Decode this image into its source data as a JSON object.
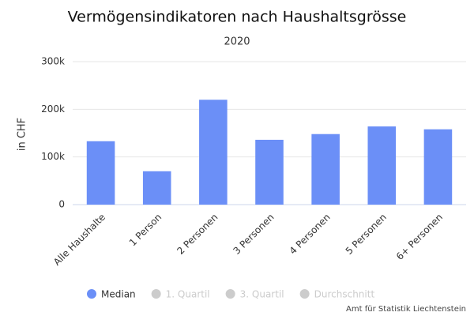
{
  "chart_data": {
    "type": "bar",
    "title": "Vermögensindikatoren nach Haushaltsgrösse",
    "subtitle": "2020",
    "y_axis_label": "in CHF",
    "categories": [
      "Alle Haushalte",
      "1 Person",
      "2 Personen",
      "3 Personen",
      "4 Personen",
      "5 Personen",
      "6+ Personen"
    ],
    "series": [
      {
        "name": "Median",
        "color": "#6b8ff7",
        "values": [
          133000,
          70000,
          220000,
          136000,
          148000,
          164000,
          158000
        ]
      }
    ],
    "legend_items": [
      {
        "name": "Median",
        "color": "#6b8ff7",
        "active": true
      },
      {
        "name": "1. Quartil",
        "color": "#cccccc",
        "active": false
      },
      {
        "name": "3. Quartil",
        "color": "#cccccc",
        "active": false
      },
      {
        "name": "Durchschnitt",
        "color": "#cccccc",
        "active": false
      }
    ],
    "ylim": [
      0,
      300000
    ],
    "yticks": [
      0,
      {
        "value": 100000,
        "label": "100k"
      },
      {
        "value": 200000,
        "label": "200k"
      },
      {
        "value": 300000,
        "label": "300k"
      }
    ],
    "grid": true,
    "credits": "Amt für Statistik Liechtenstein"
  }
}
